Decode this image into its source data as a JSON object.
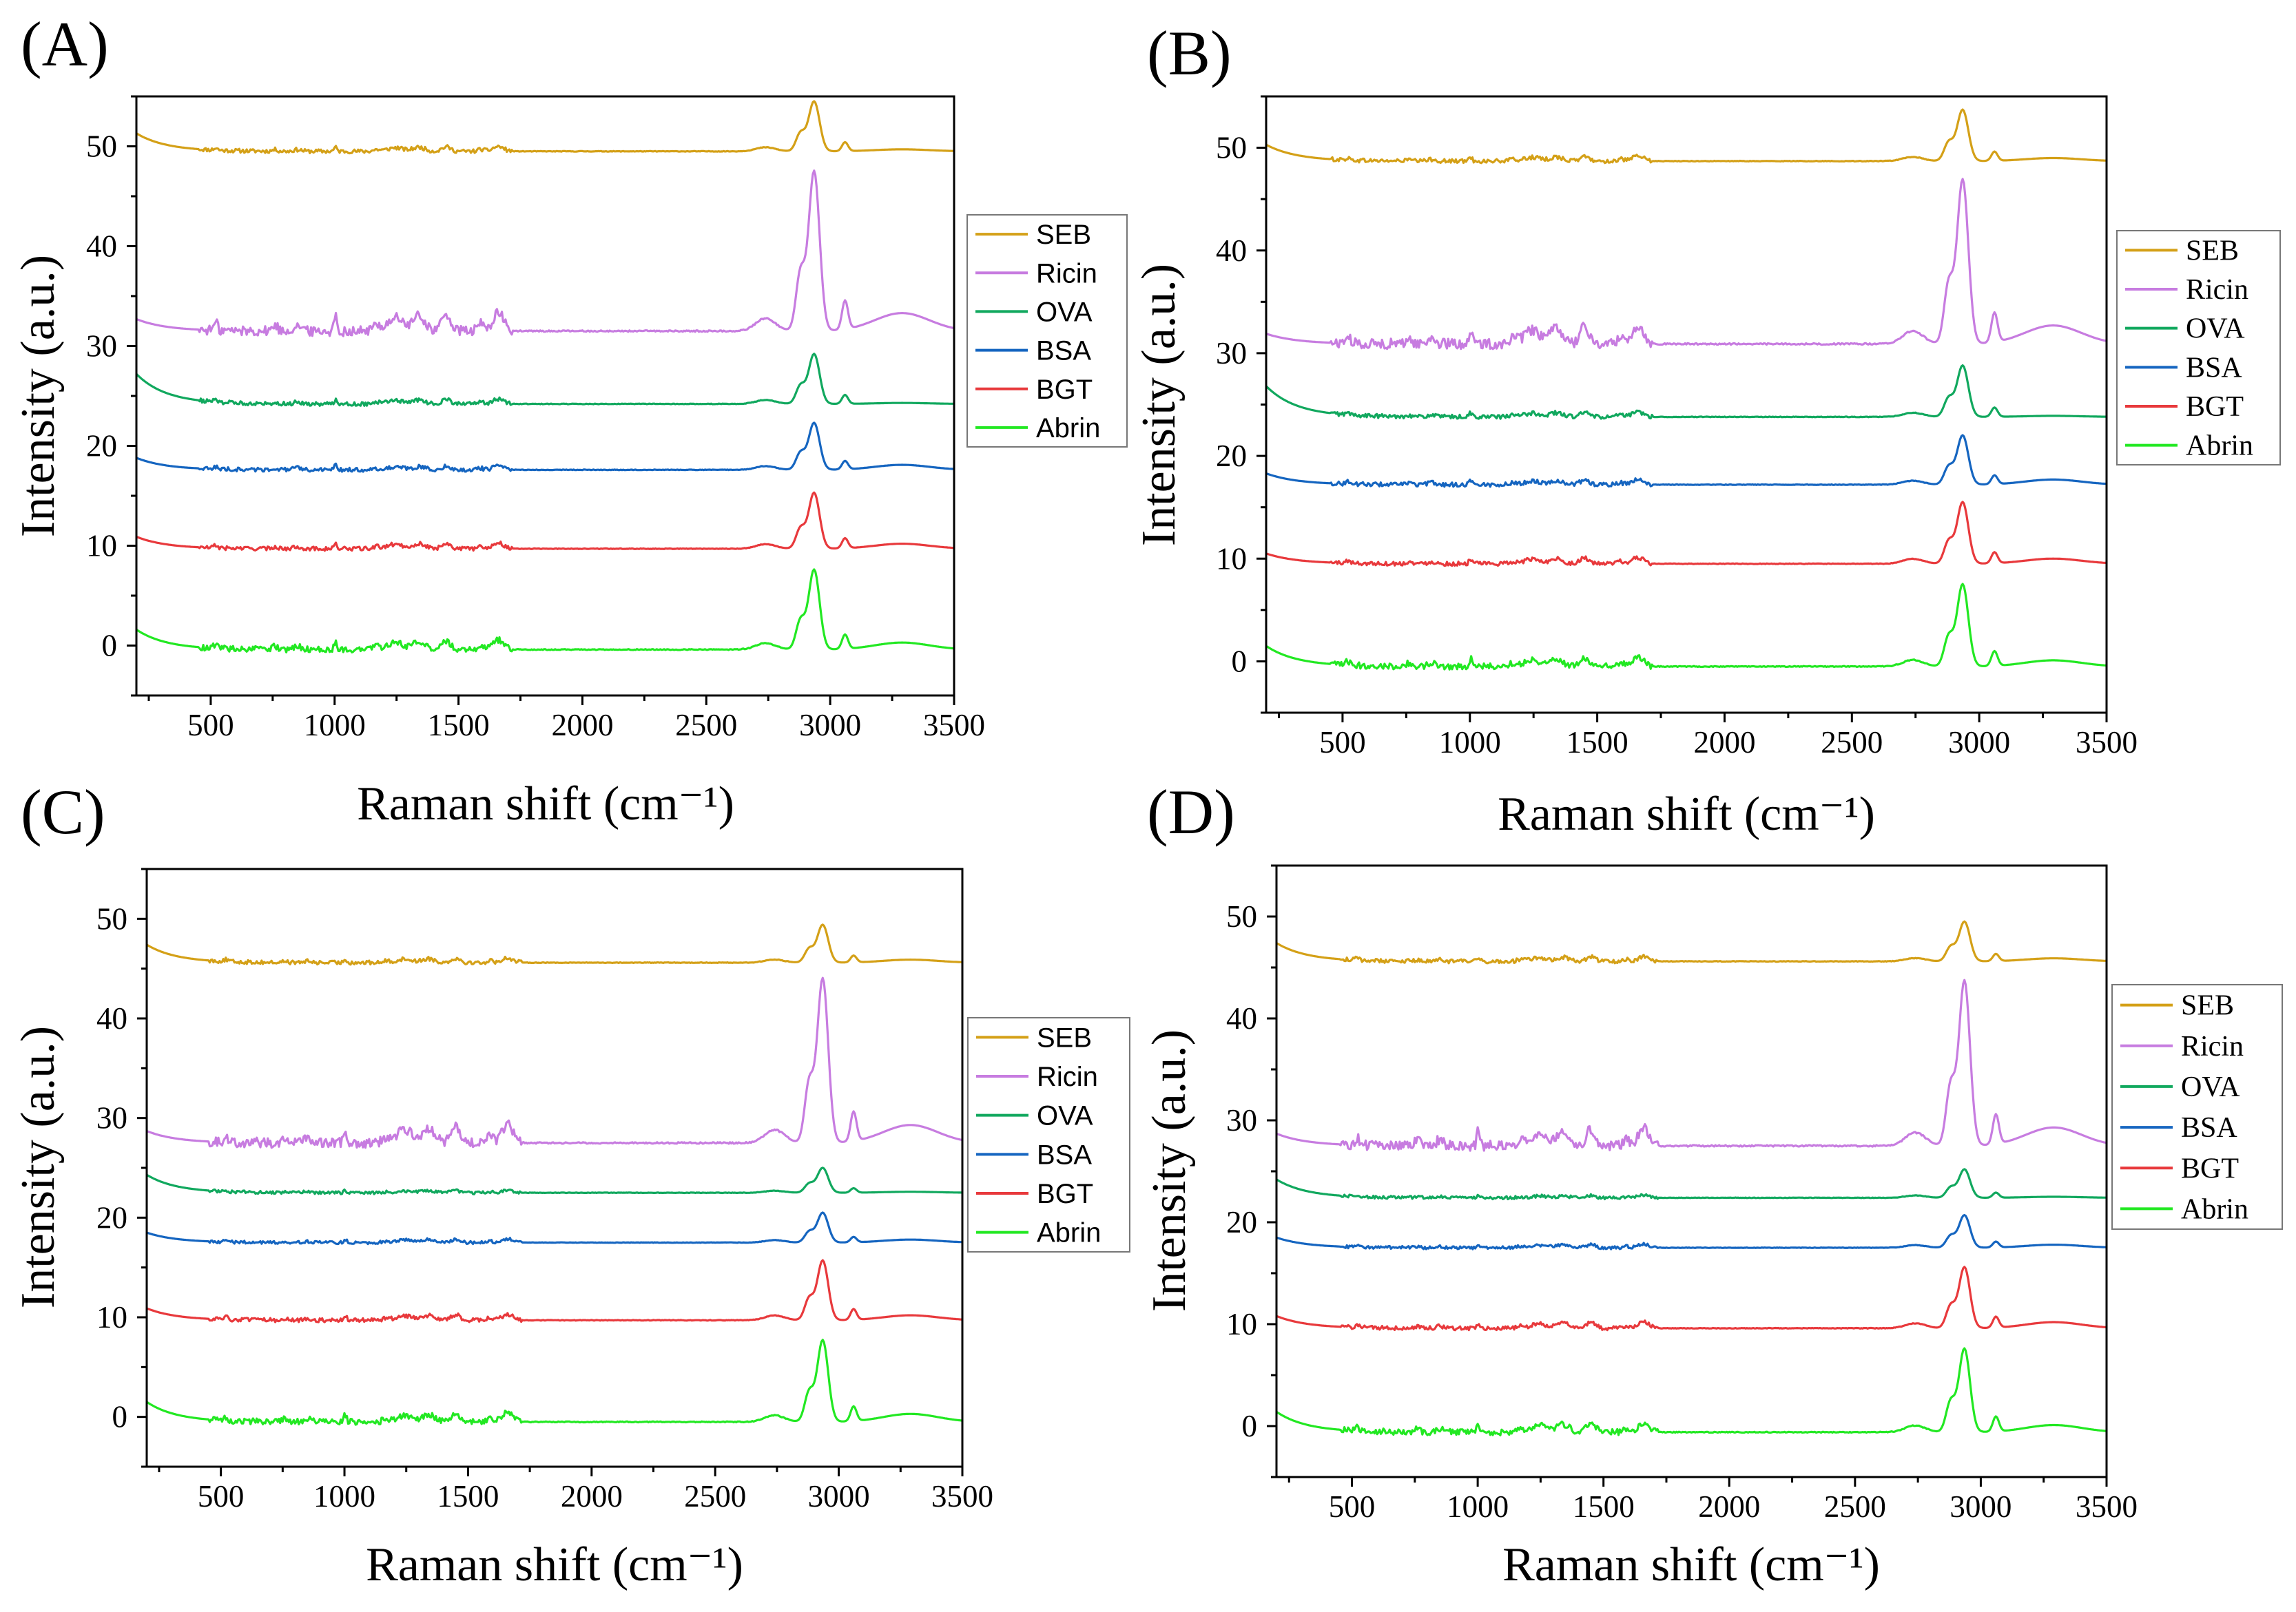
{
  "chart_data": [
    {
      "type": "line",
      "panel_label": "(A)",
      "xlabel": "Raman shift (cm⁻¹)",
      "ylabel": "Intensity (a.u.)",
      "xlim": [
        200,
        3500
      ],
      "ylim": [
        -5,
        55
      ],
      "xticks": [
        500,
        1000,
        1500,
        2000,
        2500,
        3000,
        3500
      ],
      "yticks": [
        0,
        10,
        20,
        30,
        40,
        50
      ],
      "legend": [
        "SEB",
        "Ricin",
        "OVA",
        "BSA",
        "BGT",
        "Abrin"
      ],
      "series": [
        {
          "name": "SEB",
          "color": "#D4A017",
          "baseline": 49.5,
          "main_peak": 5.0,
          "fp": 0.8,
          "amide": 0.8,
          "start": 1.8,
          "tail": 0.2,
          "noise": 0.2
        },
        {
          "name": "Ricin",
          "color": "#C77CE0",
          "baseline": 31.5,
          "main_peak": 16.0,
          "fp": 3.0,
          "amide": 3.0,
          "start": 1.2,
          "tail": 1.8,
          "noise": 0.5
        },
        {
          "name": "OVA",
          "color": "#11A85E",
          "baseline": 24.2,
          "main_peak": 5.0,
          "fp": 0.8,
          "amide": 0.8,
          "start": 3.0,
          "tail": 0.1,
          "noise": 0.2
        },
        {
          "name": "BSA",
          "color": "#1565C0",
          "baseline": 17.6,
          "main_peak": 4.7,
          "fp": 1.0,
          "amide": 0.6,
          "start": 1.2,
          "tail": 0.5,
          "noise": 0.2
        },
        {
          "name": "BGT",
          "color": "#E8393C",
          "baseline": 9.7,
          "main_peak": 5.6,
          "fp": 1.0,
          "amide": 1.0,
          "start": 1.2,
          "tail": 0.5,
          "noise": 0.2
        },
        {
          "name": "Abrin",
          "color": "#22E822",
          "baseline": -0.4,
          "main_peak": 8.0,
          "fp": 1.5,
          "amide": 1.6,
          "start": 2.0,
          "tail": 0.7,
          "noise": 0.3
        }
      ]
    },
    {
      "type": "line",
      "panel_label": "(B)",
      "xlabel": "Raman shift (cm⁻¹)",
      "ylabel": "Intensity (a.u.)",
      "xlim": [
        200,
        3500
      ],
      "ylim": [
        -5,
        55
      ],
      "xticks": [
        500,
        1000,
        1500,
        2000,
        2500,
        3000,
        3500
      ],
      "yticks": [
        0,
        10,
        20,
        30,
        40,
        50
      ],
      "legend": [
        "SEB",
        "Ricin",
        "OVA",
        "BSA",
        "BGT",
        "Abrin"
      ],
      "series": [
        {
          "name": "SEB",
          "color": "#D4A017",
          "baseline": 48.7,
          "main_peak": 5.0,
          "fp": 0.8,
          "amide": 0.8,
          "start": 1.6,
          "tail": 0.3,
          "noise": 0.2
        },
        {
          "name": "Ricin",
          "color": "#C77CE0",
          "baseline": 30.9,
          "main_peak": 16.0,
          "fp": 3.0,
          "amide": 3.0,
          "start": 1.0,
          "tail": 1.8,
          "noise": 0.5
        },
        {
          "name": "OVA",
          "color": "#11A85E",
          "baseline": 23.8,
          "main_peak": 5.0,
          "fp": 0.8,
          "amide": 0.8,
          "start": 3.0,
          "tail": 0.1,
          "noise": 0.2
        },
        {
          "name": "BSA",
          "color": "#1565C0",
          "baseline": 17.2,
          "main_peak": 4.8,
          "fp": 1.0,
          "amide": 0.8,
          "start": 1.1,
          "tail": 0.5,
          "noise": 0.2
        },
        {
          "name": "BGT",
          "color": "#E8393C",
          "baseline": 9.5,
          "main_peak": 6.0,
          "fp": 1.0,
          "amide": 1.0,
          "start": 1.0,
          "tail": 0.5,
          "noise": 0.2
        },
        {
          "name": "Abrin",
          "color": "#22E822",
          "baseline": -0.5,
          "main_peak": 8.0,
          "fp": 1.5,
          "amide": 1.5,
          "start": 2.0,
          "tail": 0.6,
          "noise": 0.3
        }
      ]
    },
    {
      "type": "line",
      "panel_label": "(C)",
      "xlabel": "Raman shift (cm⁻¹)",
      "ylabel": "Intensity (a.u.)",
      "xlim": [
        200,
        3500
      ],
      "ylim": [
        -5,
        55
      ],
      "xticks": [
        500,
        1000,
        1500,
        2000,
        2500,
        3000,
        3500
      ],
      "yticks": [
        0,
        10,
        20,
        30,
        40,
        50
      ],
      "legend": [
        "SEB",
        "Ricin",
        "OVA",
        "BSA",
        "BGT",
        "Abrin"
      ],
      "series": [
        {
          "name": "SEB",
          "color": "#D4A017",
          "baseline": 45.6,
          "main_peak": 3.8,
          "fp": 0.7,
          "amide": 0.8,
          "start": 1.8,
          "tail": 0.3,
          "noise": 0.2
        },
        {
          "name": "Ricin",
          "color": "#C77CE0",
          "baseline": 27.5,
          "main_peak": 16.5,
          "fp": 3.0,
          "amide": 3.0,
          "start": 1.2,
          "tail": 1.8,
          "noise": 0.5
        },
        {
          "name": "OVA",
          "color": "#11A85E",
          "baseline": 22.5,
          "main_peak": 2.5,
          "fp": 0.5,
          "amide": 0.4,
          "start": 1.8,
          "tail": 0.1,
          "noise": 0.15
        },
        {
          "name": "BSA",
          "color": "#1565C0",
          "baseline": 17.5,
          "main_peak": 3.0,
          "fp": 0.6,
          "amide": 0.6,
          "start": 1.0,
          "tail": 0.3,
          "noise": 0.15
        },
        {
          "name": "BGT",
          "color": "#E8393C",
          "baseline": 9.7,
          "main_peak": 6.0,
          "fp": 1.0,
          "amide": 1.0,
          "start": 1.2,
          "tail": 0.5,
          "noise": 0.2
        },
        {
          "name": "Abrin",
          "color": "#22E822",
          "baseline": -0.5,
          "main_peak": 8.2,
          "fp": 1.4,
          "amide": 1.5,
          "start": 2.0,
          "tail": 0.8,
          "noise": 0.3
        }
      ]
    },
    {
      "type": "line",
      "panel_label": "(D)",
      "xlabel": "Raman shift (cm⁻¹)",
      "ylabel": "Intensity (a.u.)",
      "xlim": [
        200,
        3500
      ],
      "ylim": [
        -5,
        55
      ],
      "xticks": [
        500,
        1000,
        1500,
        2000,
        2500,
        3000,
        3500
      ],
      "yticks": [
        0,
        10,
        20,
        30,
        40,
        50
      ],
      "legend": [
        "SEB",
        "Ricin",
        "OVA",
        "BSA",
        "BGT",
        "Abrin"
      ],
      "series": [
        {
          "name": "SEB",
          "color": "#D4A017",
          "baseline": 45.6,
          "main_peak": 3.9,
          "fp": 0.7,
          "amide": 0.8,
          "start": 1.8,
          "tail": 0.3,
          "noise": 0.2
        },
        {
          "name": "Ricin",
          "color": "#C77CE0",
          "baseline": 27.5,
          "main_peak": 16.2,
          "fp": 3.0,
          "amide": 3.0,
          "start": 1.2,
          "tail": 1.8,
          "noise": 0.5
        },
        {
          "name": "OVA",
          "color": "#11A85E",
          "baseline": 22.4,
          "main_peak": 2.8,
          "fp": 0.5,
          "amide": 0.4,
          "start": 1.8,
          "tail": 0.1,
          "noise": 0.15
        },
        {
          "name": "BSA",
          "color": "#1565C0",
          "baseline": 17.5,
          "main_peak": 3.2,
          "fp": 0.6,
          "amide": 0.6,
          "start": 1.0,
          "tail": 0.3,
          "noise": 0.15
        },
        {
          "name": "BGT",
          "color": "#E8393C",
          "baseline": 9.6,
          "main_peak": 6.0,
          "fp": 1.0,
          "amide": 1.0,
          "start": 1.2,
          "tail": 0.6,
          "noise": 0.2
        },
        {
          "name": "Abrin",
          "color": "#22E822",
          "baseline": -0.6,
          "main_peak": 8.2,
          "fp": 1.4,
          "amide": 1.5,
          "start": 2.0,
          "tail": 0.7,
          "noise": 0.3
        }
      ]
    }
  ]
}
